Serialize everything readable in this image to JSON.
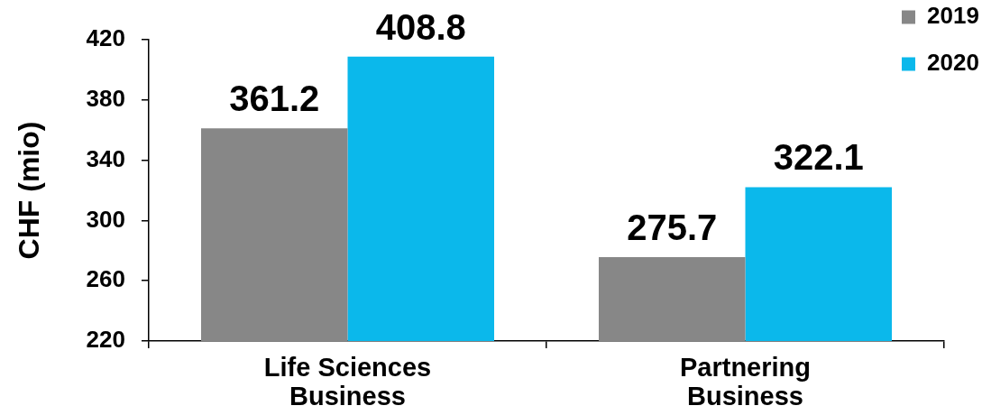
{
  "chart_data": {
    "type": "bar",
    "categories": [
      "Life Sciences Business",
      "Partnering Business"
    ],
    "series": [
      {
        "name": "2019",
        "color": "#878787",
        "values": [
          361.2,
          275.7
        ]
      },
      {
        "name": "2020",
        "color": "#0bb8eb",
        "values": [
          408.8,
          322.1
        ]
      }
    ],
    "ylabel": "CHF (mio)",
    "ylim": [
      220,
      420
    ],
    "yticks": [
      220,
      260,
      300,
      340,
      380,
      420
    ],
    "data_labels": true,
    "legend": "top right"
  }
}
